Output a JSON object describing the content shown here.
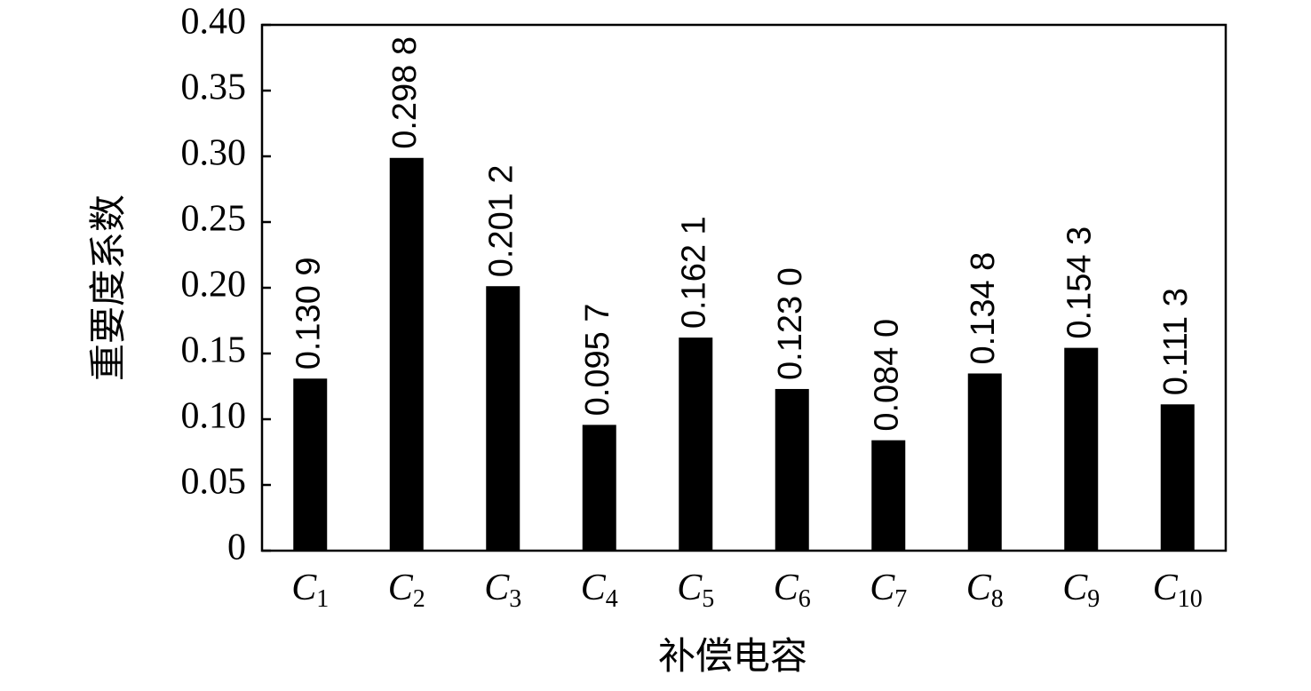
{
  "chart_data": {
    "type": "bar",
    "x_label": "补偿电容",
    "y_label": "重要度系数",
    "categories": [
      "C1",
      "C2",
      "C3",
      "C4",
      "C5",
      "C6",
      "C7",
      "C8",
      "C9",
      "C10"
    ],
    "values": [
      0.1309,
      0.2988,
      0.2012,
      0.0957,
      0.1621,
      0.123,
      0.084,
      0.1348,
      0.1543,
      0.1113
    ],
    "value_labels": [
      "0.130 9",
      "0.298 8",
      "0.201 2",
      "0.095 7",
      "0.162 1",
      "0.123 0",
      "0.084 0",
      "0.134 8",
      "0.154 3",
      "0.111 3"
    ],
    "color": "#000000",
    "ylim": [
      0,
      0.4
    ],
    "yticks": [
      0,
      0.05,
      {
        "value": 0.1,
        "label": "0.10"
      },
      0.15,
      {
        "value": 0.2,
        "label": "0.20"
      },
      0.25,
      {
        "value": 0.3,
        "label": "0.30"
      },
      0.35,
      {
        "value": 0.4,
        "label": "0.40"
      }
    ],
    "grid": false
  }
}
